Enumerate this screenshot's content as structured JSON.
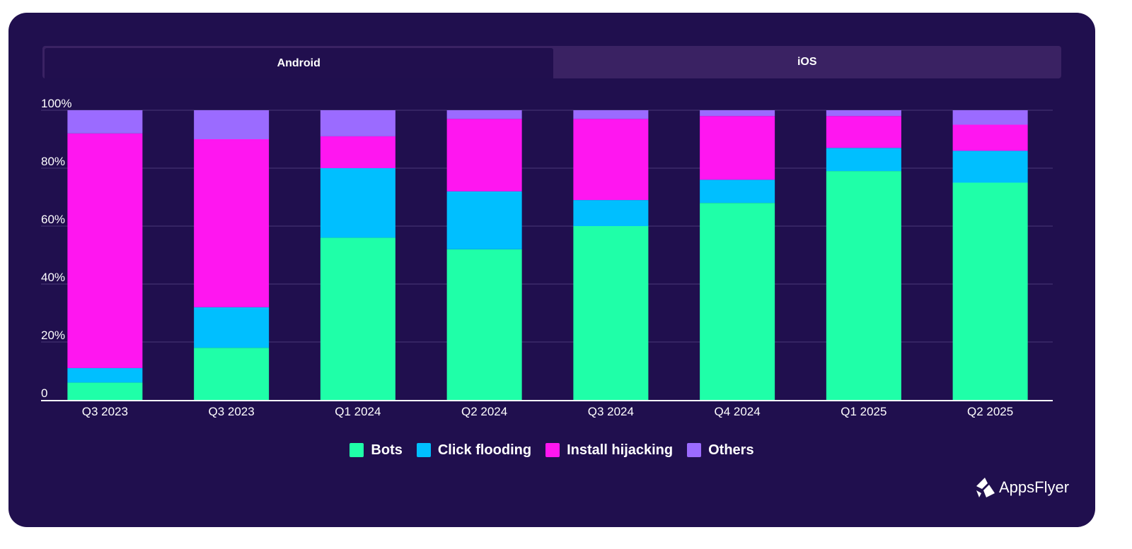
{
  "tabs": [
    {
      "label": "Android",
      "active": true
    },
    {
      "label": "iOS",
      "active": false
    }
  ],
  "chart_data": {
    "type": "bar",
    "stacked": true,
    "categories": [
      "Q3 2023",
      "Q3 2023",
      "Q1 2024",
      "Q2 2024",
      "Q3 2024",
      "Q4 2024",
      "Q1 2025",
      "Q2 2025"
    ],
    "series": [
      {
        "name": "Bots",
        "color": "#1fffa8",
        "values": [
          6,
          18,
          56,
          52,
          60,
          68,
          79,
          75
        ]
      },
      {
        "name": "Click flooding",
        "color": "#00bfff",
        "values": [
          5,
          14,
          24,
          20,
          9,
          8,
          8,
          11
        ]
      },
      {
        "name": "Install hijacking",
        "color": "#ff16f0",
        "values": [
          81,
          58,
          11,
          25,
          28,
          22,
          11,
          9
        ]
      },
      {
        "name": "Others",
        "color": "#9b6bff",
        "values": [
          8,
          10,
          9,
          3,
          3,
          2,
          2,
          5
        ]
      }
    ],
    "y_ticks": [
      "0",
      "20%",
      "40%",
      "60%",
      "80%",
      "100%"
    ],
    "ylim": [
      0,
      100
    ],
    "grid": true,
    "legend_position": "bottom-center"
  },
  "logo": {
    "text": "AppsFlyer",
    "icon": "appsflyer-logo-icon"
  }
}
